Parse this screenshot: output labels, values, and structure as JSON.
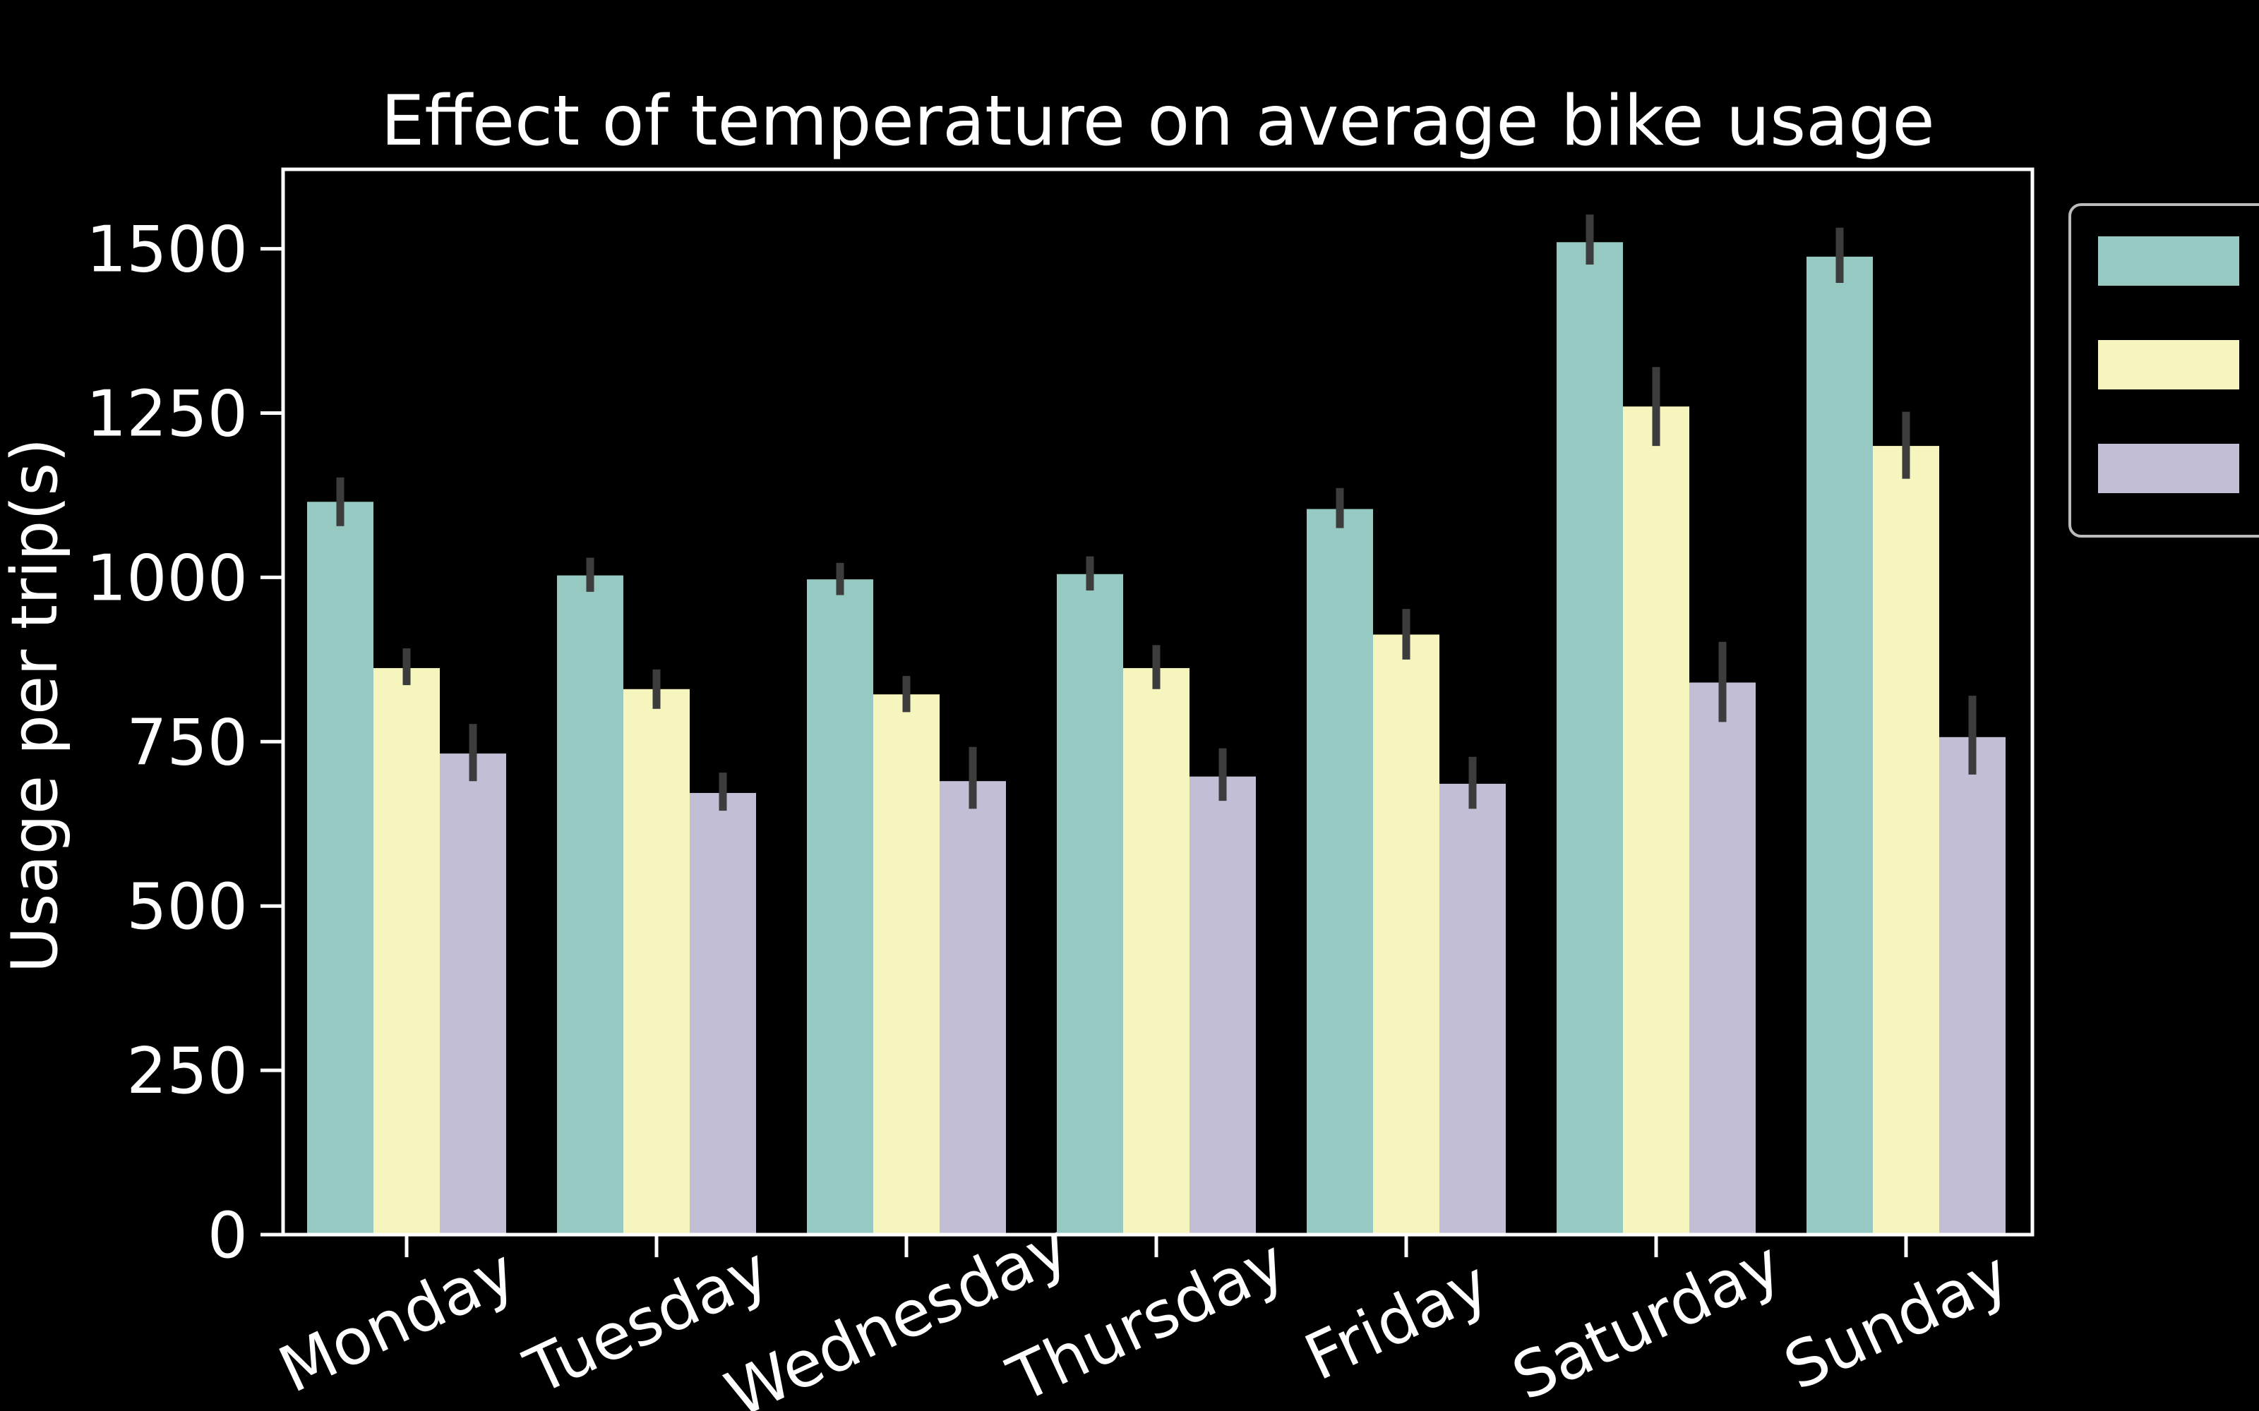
{
  "chart_data": {
    "type": "bar",
    "title": "Effect of temperature on average bike usage",
    "xlabel": "",
    "ylabel": "Usage per trip(s)",
    "ylim": [
      0,
      1625
    ],
    "yticks": [
      0,
      250,
      500,
      750,
      1000,
      1250,
      1500
    ],
    "categories": [
      "Monday",
      "Tuesday",
      "Wednesday",
      "Thursday",
      "Friday",
      "Saturday",
      "Sunday"
    ],
    "series": [
      {
        "color": "#96c9c1",
        "values": [
          1115,
          1003,
          997,
          1005,
          1104,
          1510,
          1488
        ],
        "err_low": [
          1078,
          978,
          973,
          980,
          1075,
          1476,
          1448
        ],
        "err_high": [
          1152,
          1030,
          1022,
          1032,
          1136,
          1552,
          1532
        ]
      },
      {
        "color": "#f5f5bd",
        "values": [
          862,
          830,
          822,
          862,
          913,
          1260,
          1200
        ],
        "err_low": [
          836,
          800,
          795,
          830,
          875,
          1200,
          1150
        ],
        "err_high": [
          892,
          860,
          850,
          897,
          952,
          1320,
          1252
        ]
      },
      {
        "color": "#c1bed6",
        "values": [
          732,
          672,
          690,
          697,
          686,
          840,
          757
        ],
        "err_low": [
          690,
          645,
          648,
          660,
          648,
          780,
          700
        ],
        "err_high": [
          777,
          703,
          742,
          740,
          727,
          902,
          820
        ]
      }
    ],
    "error_bar_color": "#3c3c3c",
    "background": "#000000",
    "foreground": "#ffffff",
    "grid": false,
    "legend_placement": "right, outside plot, entries clipped"
  }
}
